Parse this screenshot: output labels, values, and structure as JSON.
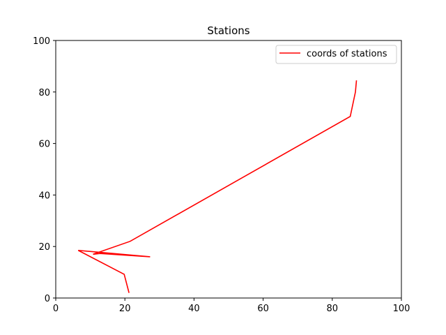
{
  "chart_data": {
    "type": "line",
    "title": "Stations",
    "xlabel": "",
    "ylabel": "",
    "xlim": [
      0,
      100
    ],
    "ylim": [
      0,
      100
    ],
    "xticks": [
      0,
      20,
      40,
      60,
      80,
      100
    ],
    "yticks": [
      0,
      20,
      40,
      60,
      80,
      100
    ],
    "grid": false,
    "legend_position": "top-right",
    "series": [
      {
        "name": "coords of stations",
        "color": "#ff0000",
        "x": [
          21.2,
          19.8,
          6.5,
          27.3,
          12.8,
          10.8,
          21.5,
          85.2,
          86.7,
          87.0
        ],
        "y": [
          2.0,
          9.2,
          18.5,
          16.0,
          17.3,
          17.0,
          22.0,
          70.5,
          80.0,
          84.5
        ]
      }
    ]
  }
}
